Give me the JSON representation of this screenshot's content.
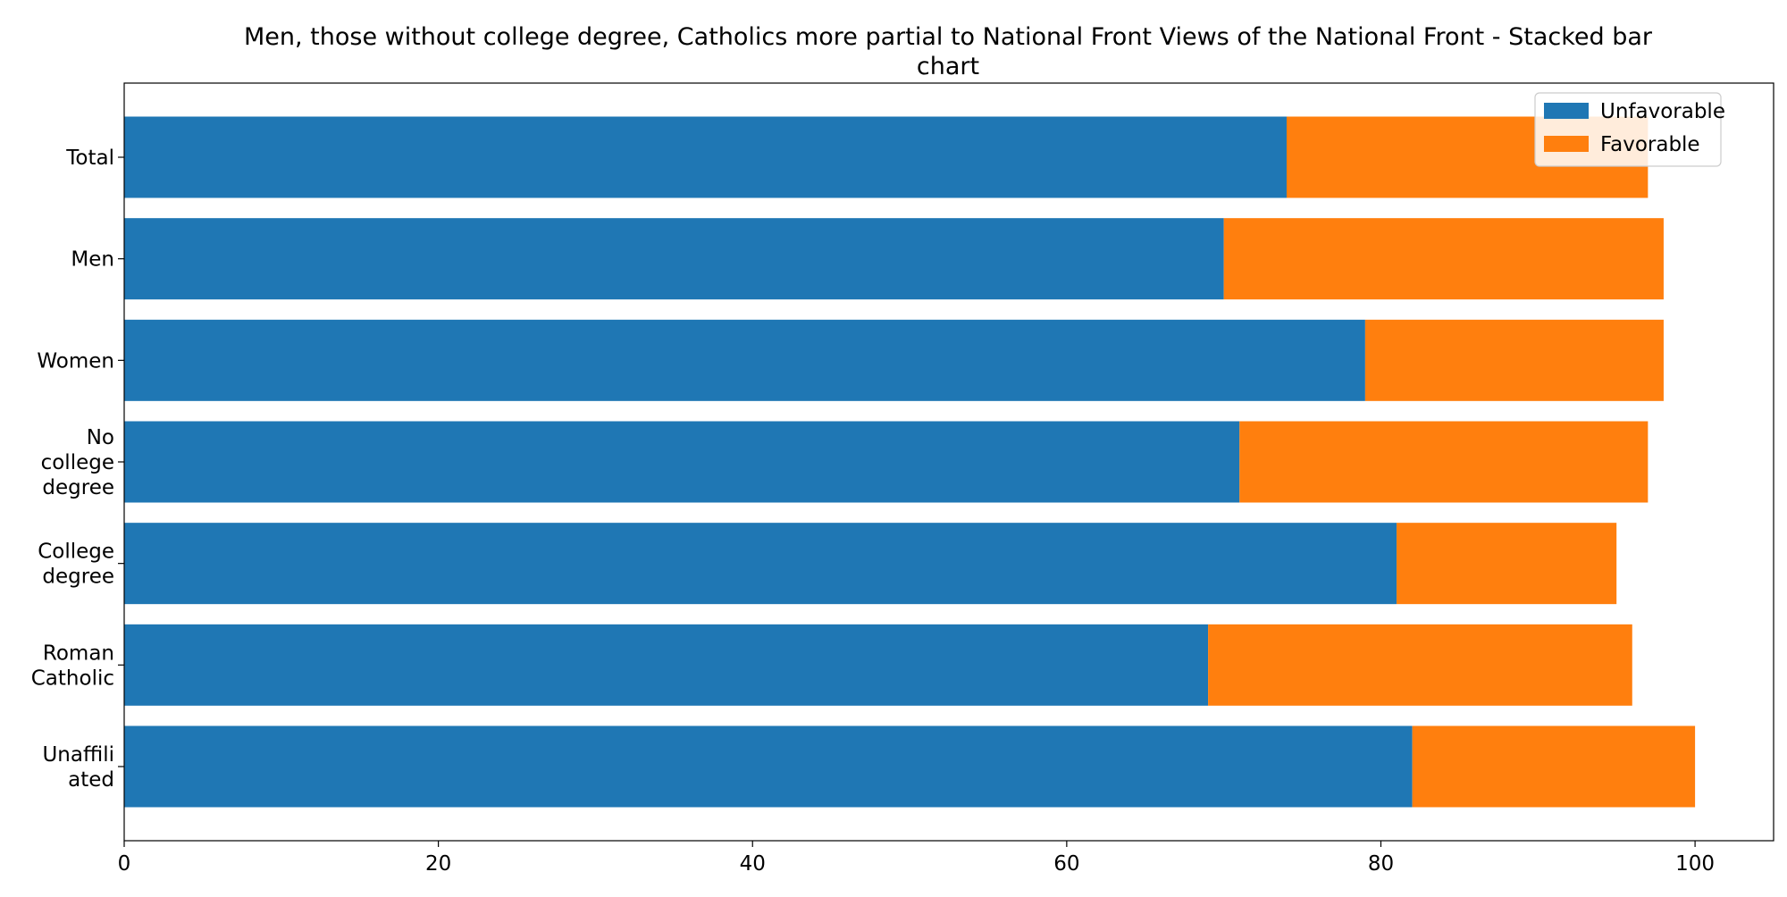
{
  "chart_data": {
    "type": "bar",
    "orientation": "horizontal",
    "stacked": true,
    "title_lines": [
      "Men, those without college degree, Catholics more partial to National Front Views of the National Front  - Stacked bar",
      "chart"
    ],
    "xlabel": "",
    "ylabel": "",
    "xlim": [
      0,
      105
    ],
    "x_ticks": [
      0,
      20,
      40,
      60,
      80,
      100
    ],
    "grid": false,
    "legend_position": "top-right",
    "categories": [
      [
        "Total"
      ],
      [
        "Men"
      ],
      [
        "Women"
      ],
      [
        "No",
        "college",
        "degree"
      ],
      [
        "College",
        "degree"
      ],
      [
        "Roman",
        "Catholic"
      ],
      [
        "Unaffili",
        "ated"
      ]
    ],
    "series": [
      {
        "name": "Unfavorable",
        "color": "#1f77b4",
        "values": [
          74,
          70,
          79,
          71,
          81,
          69,
          82
        ]
      },
      {
        "name": "Favorable",
        "color": "#ff7f0e",
        "values": [
          23,
          28,
          19,
          26,
          14,
          27,
          18
        ]
      }
    ]
  }
}
